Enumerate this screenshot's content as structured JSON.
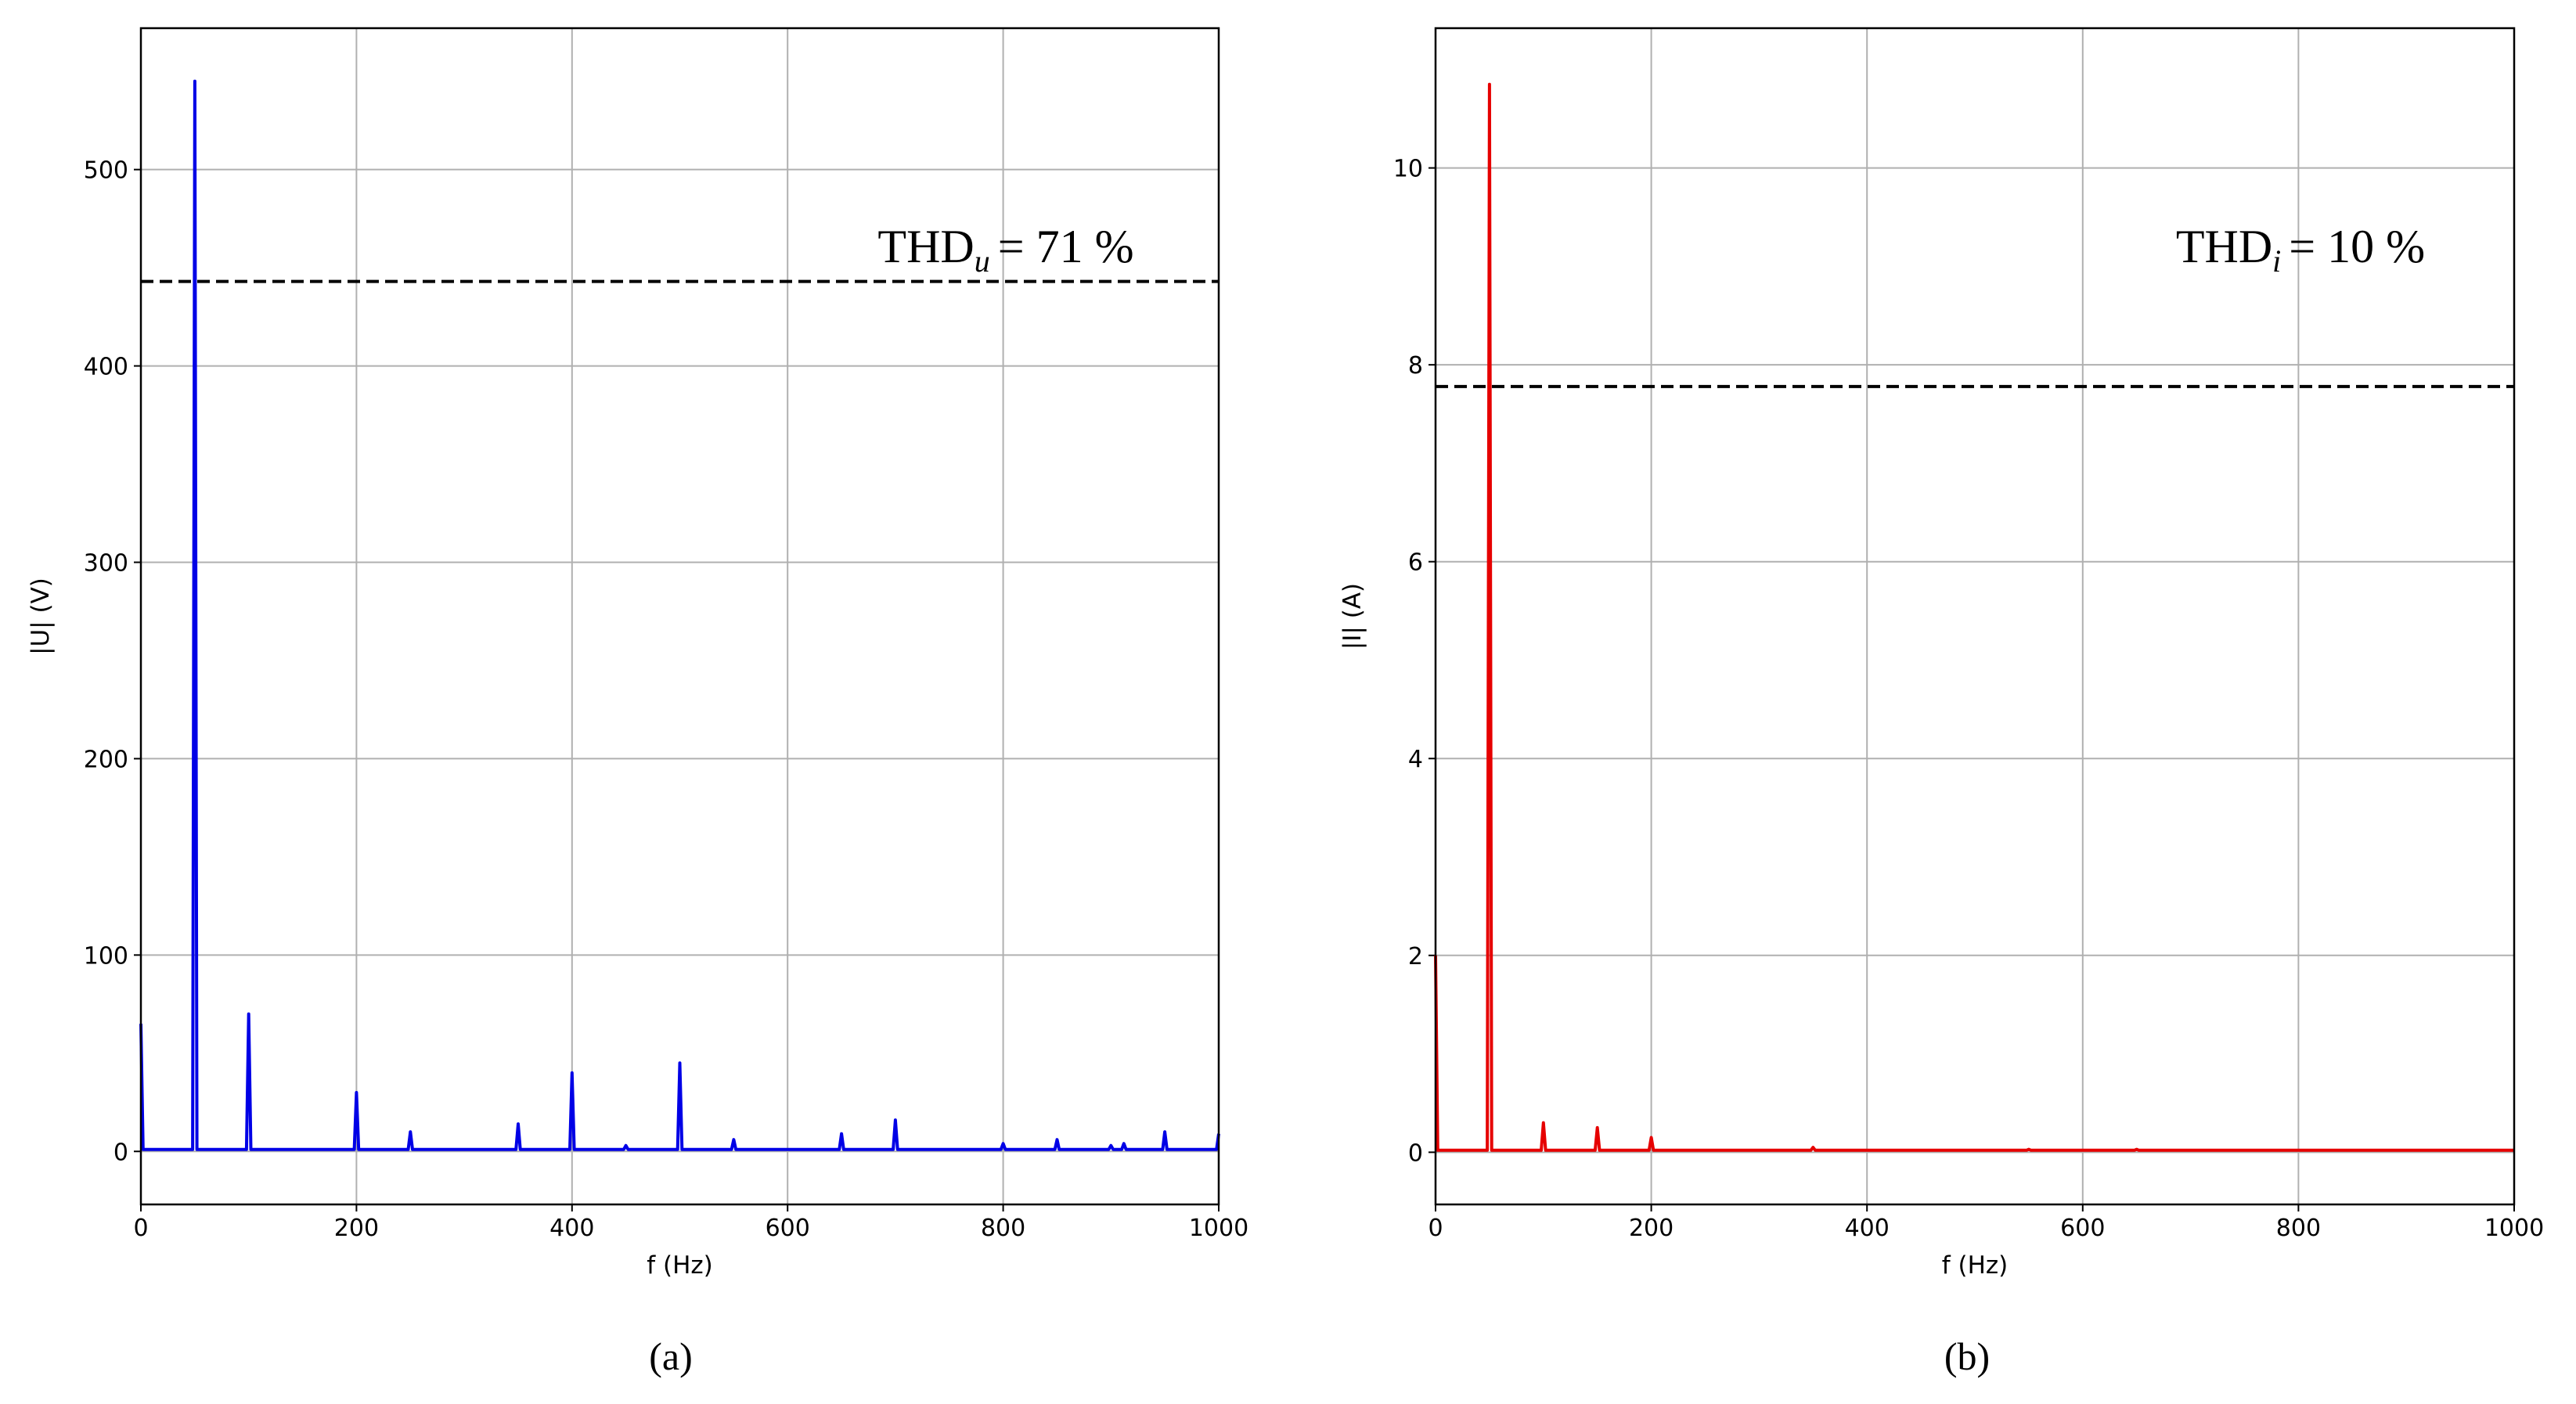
{
  "chart_data": [
    {
      "type": "line",
      "xlabel": "f (Hz)",
      "ylabel": "|U| (V)",
      "caption": "(a)",
      "annotation": {
        "text": "THD",
        "sub": "u",
        "rest": "= 71 %"
      },
      "hline": 443,
      "x": [
        0,
        2,
        48,
        50,
        52,
        98,
        100,
        102,
        198,
        200,
        202,
        248,
        250,
        252,
        348,
        350,
        352,
        398,
        400,
        402,
        448,
        450,
        452,
        498,
        500,
        502,
        548,
        550,
        552,
        648,
        650,
        652,
        698,
        700,
        702,
        798,
        800,
        802,
        848,
        850,
        852,
        898,
        900,
        902,
        910,
        912,
        914,
        948,
        950,
        952,
        998,
        1000
      ],
      "values": [
        65,
        1,
        1,
        545,
        1,
        1,
        70,
        1,
        1,
        30,
        1,
        1,
        10,
        1,
        1,
        14,
        1,
        1,
        40,
        1,
        1,
        3,
        1,
        1,
        45,
        1,
        1,
        6,
        1,
        1,
        9,
        1,
        1,
        16,
        1,
        1,
        4,
        1,
        1,
        6,
        1,
        1,
        3,
        1,
        1,
        4,
        1,
        1,
        10,
        1,
        1,
        9
      ],
      "color": "#0000e6",
      "xlim": [
        0,
        1000
      ],
      "xticks": [
        0,
        200,
        400,
        600,
        800,
        1000
      ],
      "ylim": [
        -27,
        572
      ],
      "yticks": [
        0,
        100,
        200,
        300,
        400,
        500
      ],
      "grid": true
    },
    {
      "type": "line",
      "xlabel": "f (Hz)",
      "ylabel": "|I| (A)",
      "caption": "(b)",
      "annotation": {
        "text": "THD",
        "sub": "i",
        "rest": "= 10 %"
      },
      "hline": 7.78,
      "x": [
        0,
        2,
        48,
        50,
        52,
        98,
        100,
        102,
        148,
        150,
        152,
        198,
        200,
        202,
        348,
        350,
        352,
        548,
        550,
        552,
        648,
        650,
        652,
        1000
      ],
      "values": [
        2,
        0.02,
        0.02,
        10.85,
        0.02,
        0.02,
        0.3,
        0.02,
        0.02,
        0.25,
        0.02,
        0.02,
        0.15,
        0.02,
        0.02,
        0.05,
        0.02,
        0.02,
        0.03,
        0.02,
        0.02,
        0.03,
        0.02,
        0.02
      ],
      "color": "#e60000",
      "xlim": [
        0,
        1000
      ],
      "xticks": [
        0,
        200,
        400,
        600,
        800,
        1000
      ],
      "ylim": [
        -0.53,
        11.42
      ],
      "yticks": [
        0,
        2,
        4,
        6,
        8,
        10
      ],
      "grid": true
    }
  ]
}
